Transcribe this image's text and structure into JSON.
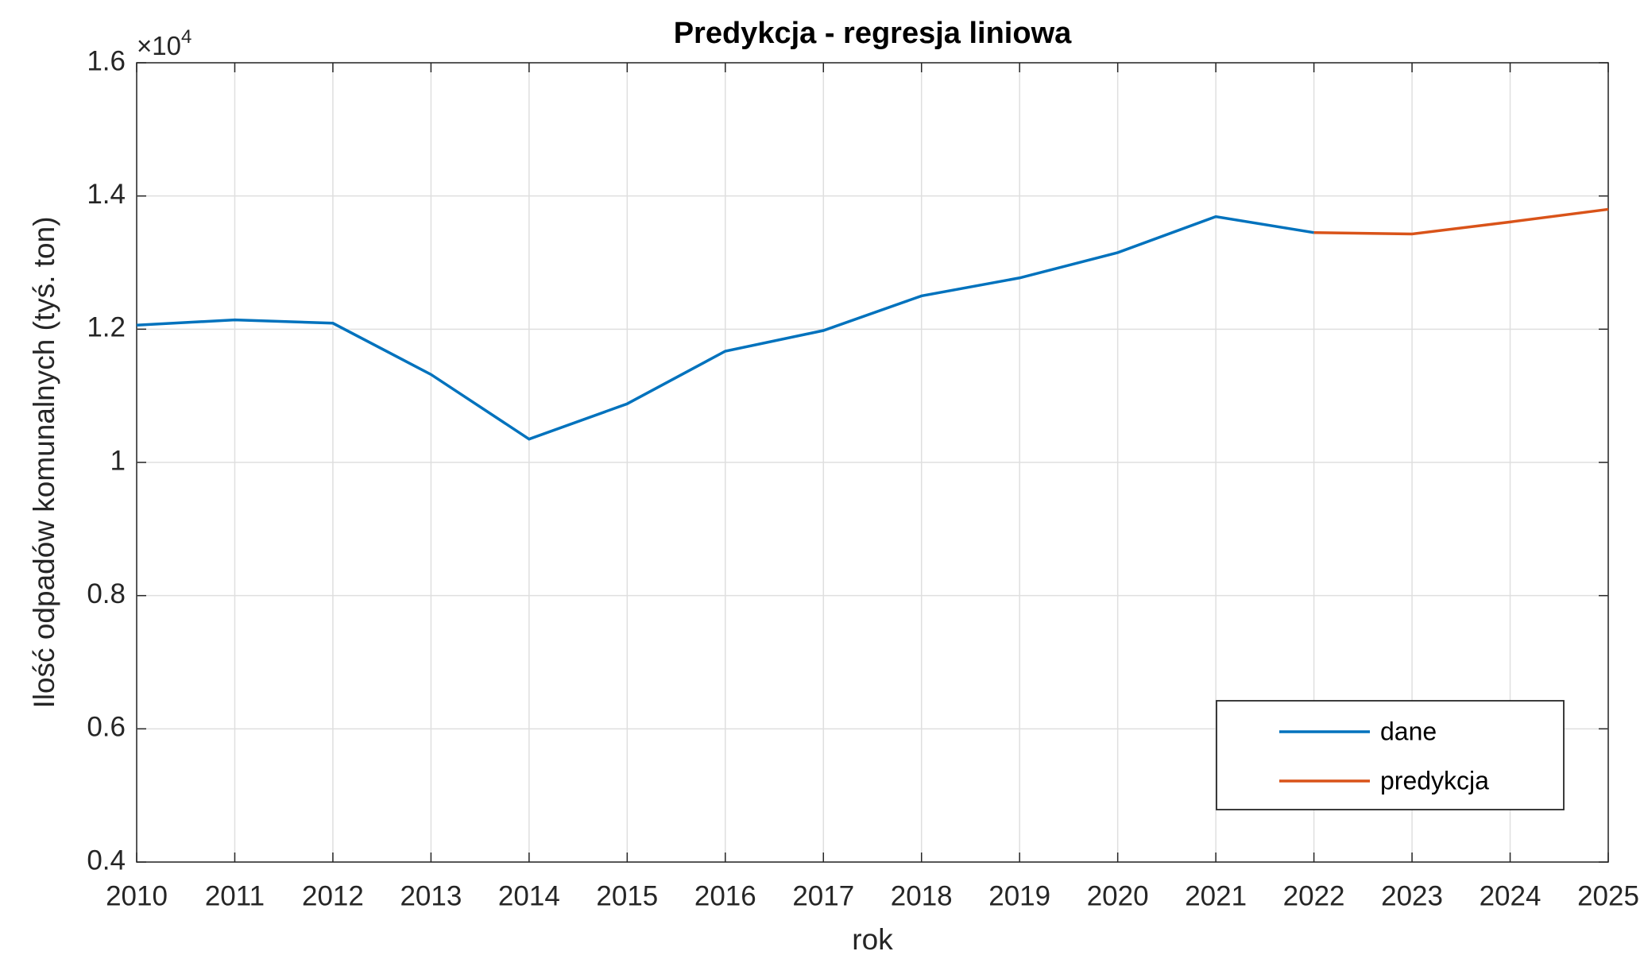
{
  "chart_data": {
    "type": "line",
    "title": "Predykcja - regresja liniowa",
    "x_label": "rok",
    "y_label": "Ilość odpadów komunalnych (tyś. ton)",
    "y_multiplier": {
      "base": "×10",
      "exponent": "4"
    },
    "x": [
      2010,
      2011,
      2012,
      2013,
      2014,
      2015,
      2016,
      2017,
      2018,
      2019,
      2020,
      2021,
      2022,
      2023,
      2024,
      2025
    ],
    "series": [
      {
        "name": "dane",
        "color": "#0072bd",
        "values": [
          1.206,
          1.214,
          1.209,
          1.132,
          1.035,
          1.088,
          1.167,
          1.198,
          1.25,
          1.277,
          1.315,
          1.369,
          1.345,
          null,
          null,
          null
        ]
      },
      {
        "name": "predykcja",
        "color": "#d95319",
        "values": [
          null,
          null,
          null,
          null,
          null,
          null,
          null,
          null,
          null,
          null,
          null,
          null,
          1.345,
          1.343,
          1.361,
          1.38
        ]
      }
    ],
    "xlim": [
      2010,
      2025
    ],
    "xticks": [
      2010,
      2011,
      2012,
      2013,
      2014,
      2015,
      2016,
      2017,
      2018,
      2019,
      2020,
      2021,
      2022,
      2023,
      2024,
      2025
    ],
    "ylim": [
      0.4,
      1.6
    ],
    "yticks": [
      0.4,
      0.6,
      0.8,
      1,
      1.2,
      1.4,
      1.6
    ],
    "grid": true,
    "legend": "southeast"
  }
}
